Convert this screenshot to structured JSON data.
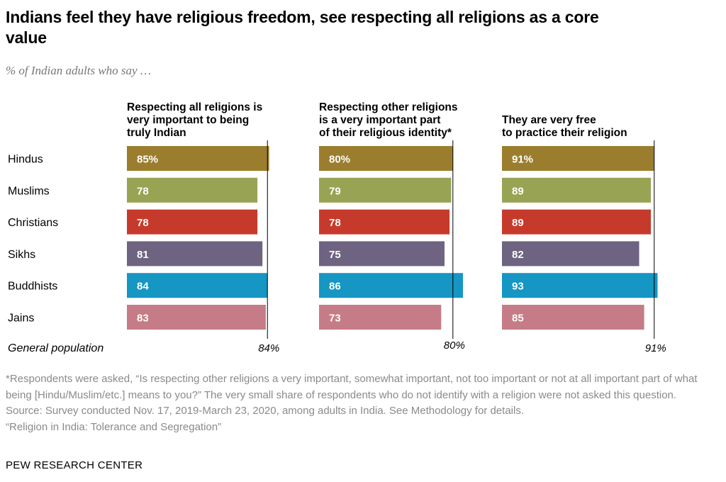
{
  "title": "Indians feel they have religious freedom, see respecting all religions as a core value",
  "subtitle": "% of Indian adults who say …",
  "chart_data": {
    "type": "bar",
    "orientation": "horizontal",
    "categories": [
      "Hindus",
      "Muslims",
      "Christians",
      "Sikhs",
      "Buddhists",
      "Jains"
    ],
    "category_colors": [
      "#9b7d2e",
      "#98a453",
      "#c63a2c",
      "#6e6380",
      "#1596c3",
      "#c57c86"
    ],
    "reference_label": "General population",
    "panels": [
      {
        "header": [
          "Respecting all religions is",
          "very important to being",
          "truly Indian"
        ],
        "values": [
          85,
          78,
          78,
          81,
          84,
          83
        ],
        "value_labels": [
          "85%",
          "78",
          "78",
          "81",
          "84",
          "83"
        ],
        "reference_value": 84,
        "reference_label": "84%"
      },
      {
        "header": [
          "Respecting other religions",
          "is a very important part",
          "of their religious identity*"
        ],
        "values": [
          80,
          79,
          78,
          75,
          86,
          73
        ],
        "value_labels": [
          "80%",
          "79",
          "78",
          "75",
          "86",
          "73"
        ],
        "reference_value": 80,
        "reference_label": "80%"
      },
      {
        "header": [
          "They are very free",
          "to practice their religion"
        ],
        "values": [
          91,
          89,
          89,
          82,
          93,
          85
        ],
        "value_labels": [
          "91%",
          "89",
          "89",
          "82",
          "93",
          "85"
        ],
        "reference_value": 91,
        "reference_label": "91%"
      }
    ]
  },
  "notes": {
    "footnote": "*Respondents were asked, “Is respecting other religions a very important, somewhat important, not too important or not at all important part of what being [Hindu/Muslim/etc.] means to you?” The very small share of respondents who do not identify with a religion were not asked this question.",
    "source": "Source: Survey conducted Nov. 17, 2019-March 23, 2020, among adults in India. See Methodology for details.",
    "report": "“Religion in India: Tolerance and Segregation”"
  },
  "brand": "PEW RESEARCH CENTER"
}
